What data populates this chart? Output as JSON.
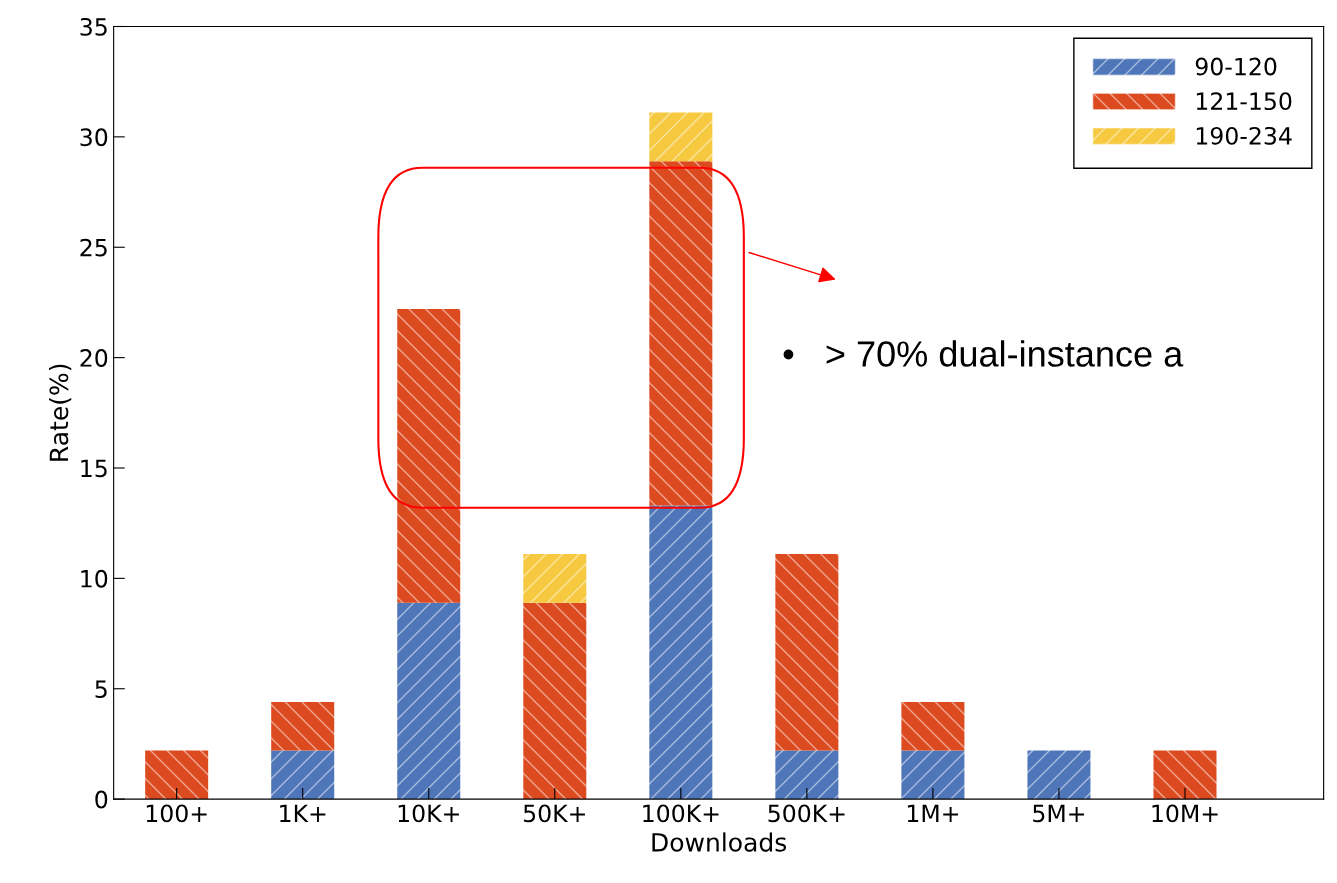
{
  "chart_data": {
    "type": "bar",
    "stacked": true,
    "xlabel": "Downloads",
    "ylabel": "Rate(%)",
    "categories": [
      "100+",
      "1K+",
      "10K+",
      "50K+",
      "100K+",
      "500K+",
      "1M+",
      "5M+",
      "10M+"
    ],
    "series": [
      {
        "name": "90-120",
        "color": "#4f76b8",
        "values": [
          0,
          2.2,
          8.9,
          0,
          13.3,
          2.2,
          2.2,
          2.2,
          0
        ]
      },
      {
        "name": "121-150",
        "color": "#dc4a20",
        "values": [
          2.2,
          2.2,
          13.3,
          8.9,
          15.6,
          8.9,
          2.2,
          0,
          2.2
        ]
      },
      {
        "name": "190-234",
        "color": "#f6c940",
        "values": [
          0,
          0,
          0,
          2.2,
          2.2,
          0,
          0,
          0,
          0
        ]
      }
    ],
    "ylim": [
      0,
      35
    ],
    "yticks": [
      0,
      5,
      10,
      15,
      20,
      25,
      30,
      35
    ],
    "grid": false,
    "legend": "top right",
    "annotations": [
      "•   > 70% dual-instance a"
    ]
  }
}
